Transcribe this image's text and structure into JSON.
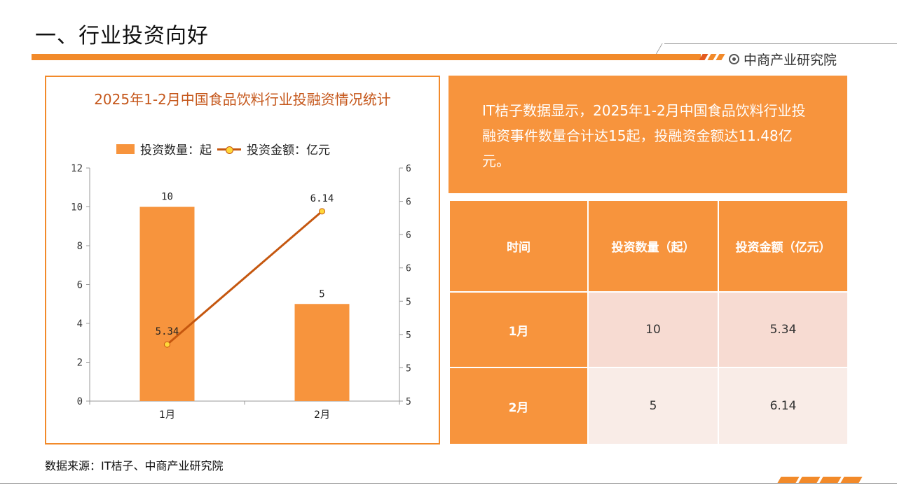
{
  "header": {
    "title": "一、行业投资向好",
    "brand": "中商产业研究院"
  },
  "chart_data": {
    "type": "bar",
    "title": "2025年1-2月中国食品饮料行业投融资情况统计",
    "categories": [
      "1月",
      "2月"
    ],
    "series": [
      {
        "name": "投资数量：起",
        "type": "bar",
        "axis": "left",
        "values": [
          10,
          5
        ],
        "labels": [
          "10",
          "5"
        ],
        "color": "#f7943d"
      },
      {
        "name": "投资金额：亿元",
        "type": "line",
        "axis": "right",
        "values": [
          5.34,
          6.14
        ],
        "labels": [
          "5.34",
          "6.14"
        ],
        "color": "#c5570f",
        "marker_color": "#ffd83a"
      }
    ],
    "y_left": {
      "ylim": [
        0,
        12
      ],
      "ticks": [
        "0",
        "2",
        "4",
        "6",
        "8",
        "10",
        "12"
      ]
    },
    "y_right": {
      "ylim": [
        5,
        6.4
      ],
      "ticks": [
        "5",
        "5",
        "5",
        "5",
        "6",
        "6",
        "6",
        "6"
      ]
    },
    "grid": false,
    "legend_position": "top"
  },
  "summary": {
    "text": "IT桔子数据显示，2025年1-2月中国食品饮料行业投融资事件数量合计达15起，投融资金额达11.48亿元。"
  },
  "table": {
    "headers": [
      "时间",
      "投资数量（起）",
      "投资金额（亿元）"
    ],
    "rows": [
      [
        "1月",
        "10",
        "5.34"
      ],
      [
        "2月",
        "5",
        "6.14"
      ]
    ]
  },
  "source": "数据来源：IT桔子、中商产业研究院"
}
